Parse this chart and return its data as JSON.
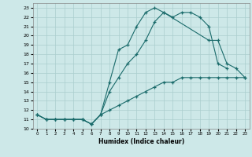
{
  "xlabel": "Humidex (Indice chaleur)",
  "xlim": [
    -0.5,
    23.5
  ],
  "ylim": [
    10,
    23.5
  ],
  "yticks": [
    10,
    11,
    12,
    13,
    14,
    15,
    16,
    17,
    18,
    19,
    20,
    21,
    22,
    23
  ],
  "xticks": [
    0,
    1,
    2,
    3,
    4,
    5,
    6,
    7,
    8,
    9,
    10,
    11,
    12,
    13,
    14,
    15,
    16,
    17,
    18,
    19,
    20,
    21,
    22,
    23
  ],
  "bg_color": "#cde8e8",
  "grid_color": "#aacece",
  "line_color": "#1a6b6b",
  "line1_x": [
    0,
    1,
    2,
    3,
    4,
    5,
    6,
    7,
    8,
    9,
    10,
    11,
    12,
    13,
    14,
    15,
    16,
    17,
    18,
    19,
    20,
    21
  ],
  "line1_y": [
    11.5,
    11.0,
    11.0,
    11.0,
    11.0,
    11.0,
    10.5,
    11.5,
    15.0,
    18.5,
    19.0,
    21.0,
    22.5,
    23.0,
    22.5,
    22.0,
    22.5,
    22.5,
    22.0,
    21.0,
    17.0,
    16.5
  ],
  "line2_x": [
    0,
    1,
    2,
    3,
    4,
    5,
    6,
    7,
    8,
    9,
    10,
    11,
    12,
    13,
    14,
    19,
    20,
    21,
    22,
    23
  ],
  "line2_y": [
    11.5,
    11.0,
    11.0,
    11.0,
    11.0,
    11.0,
    10.5,
    11.5,
    14.0,
    15.5,
    17.0,
    18.0,
    19.5,
    21.5,
    22.5,
    19.5,
    19.5,
    17.0,
    16.5,
    15.5
  ],
  "line3_x": [
    0,
    1,
    2,
    3,
    4,
    5,
    6,
    7,
    8,
    9,
    10,
    11,
    12,
    13,
    14,
    15,
    16,
    17,
    18,
    19,
    20,
    21,
    22,
    23
  ],
  "line3_y": [
    11.5,
    11.0,
    11.0,
    11.0,
    11.0,
    11.0,
    10.5,
    11.5,
    12.0,
    12.5,
    13.0,
    13.5,
    14.0,
    14.5,
    15.0,
    15.0,
    15.5,
    15.5,
    15.5,
    15.5,
    15.5,
    15.5,
    15.5,
    15.5
  ]
}
